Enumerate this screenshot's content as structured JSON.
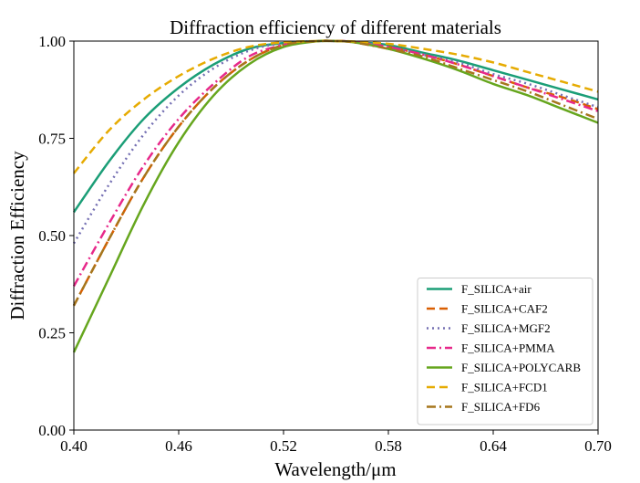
{
  "chart_data": {
    "type": "line",
    "title": "Diffraction efficiency of different materials",
    "xlabel": "Wavelength/μm",
    "ylabel": "Diffraction Efficiency",
    "xlim": [
      0.4,
      0.7
    ],
    "ylim": [
      0.0,
      1.0
    ],
    "xticks": [
      "0.40",
      "0.46",
      "0.52",
      "0.58",
      "0.64",
      "0.70"
    ],
    "yticks": [
      "0.00",
      "0.25",
      "0.50",
      "0.75",
      "1.00"
    ],
    "grid": false,
    "legend_position": "lower-right",
    "x": [
      0.4,
      0.42,
      0.44,
      0.46,
      0.48,
      0.5,
      0.52,
      0.54,
      0.55,
      0.56,
      0.58,
      0.6,
      0.62,
      0.64,
      0.66,
      0.68,
      0.7
    ],
    "series": [
      {
        "name": "F_SILICA+air",
        "color": "#1b9e77",
        "dash": "solid",
        "values": [
          0.56,
          0.69,
          0.8,
          0.88,
          0.94,
          0.98,
          0.995,
          1.0,
          1.0,
          0.998,
          0.99,
          0.97,
          0.95,
          0.925,
          0.9,
          0.875,
          0.85
        ]
      },
      {
        "name": "F_SILICA+CAF2",
        "color": "#d95f02",
        "dash": "dashed",
        "values": [
          0.32,
          0.49,
          0.65,
          0.78,
          0.88,
          0.95,
          0.99,
          1.0,
          1.0,
          0.998,
          0.985,
          0.965,
          0.94,
          0.91,
          0.88,
          0.855,
          0.825
        ]
      },
      {
        "name": "F_SILICA+MGF2",
        "color": "#7570b3",
        "dash": "dotted",
        "values": [
          0.48,
          0.63,
          0.76,
          0.86,
          0.93,
          0.975,
          0.995,
          1.0,
          1.0,
          0.998,
          0.985,
          0.965,
          0.945,
          0.915,
          0.89,
          0.86,
          0.83
        ]
      },
      {
        "name": "F_SILICA+PMMA",
        "color": "#e7298a",
        "dash": "dashdot",
        "values": [
          0.37,
          0.53,
          0.68,
          0.8,
          0.89,
          0.96,
          0.99,
          1.0,
          1.0,
          0.998,
          0.985,
          0.965,
          0.94,
          0.91,
          0.88,
          0.85,
          0.82
        ]
      },
      {
        "name": "F_SILICA+POLYCARB",
        "color": "#66a61e",
        "dash": "solid",
        "values": [
          0.2,
          0.39,
          0.58,
          0.74,
          0.86,
          0.94,
          0.985,
          1.0,
          1.0,
          0.997,
          0.98,
          0.955,
          0.925,
          0.89,
          0.86,
          0.825,
          0.79
        ]
      },
      {
        "name": "F_SILICA+FCD1",
        "color": "#e6ab02",
        "dash": "dashed",
        "values": [
          0.66,
          0.77,
          0.85,
          0.91,
          0.955,
          0.985,
          0.997,
          1.0,
          1.0,
          0.999,
          0.993,
          0.98,
          0.965,
          0.945,
          0.92,
          0.895,
          0.87
        ]
      },
      {
        "name": "F_SILICA+FD6",
        "color": "#a6761d",
        "dash": "dashdot",
        "values": [
          0.32,
          0.49,
          0.65,
          0.78,
          0.88,
          0.95,
          0.99,
          1.0,
          1.0,
          0.997,
          0.98,
          0.96,
          0.93,
          0.9,
          0.87,
          0.835,
          0.8
        ]
      }
    ]
  }
}
